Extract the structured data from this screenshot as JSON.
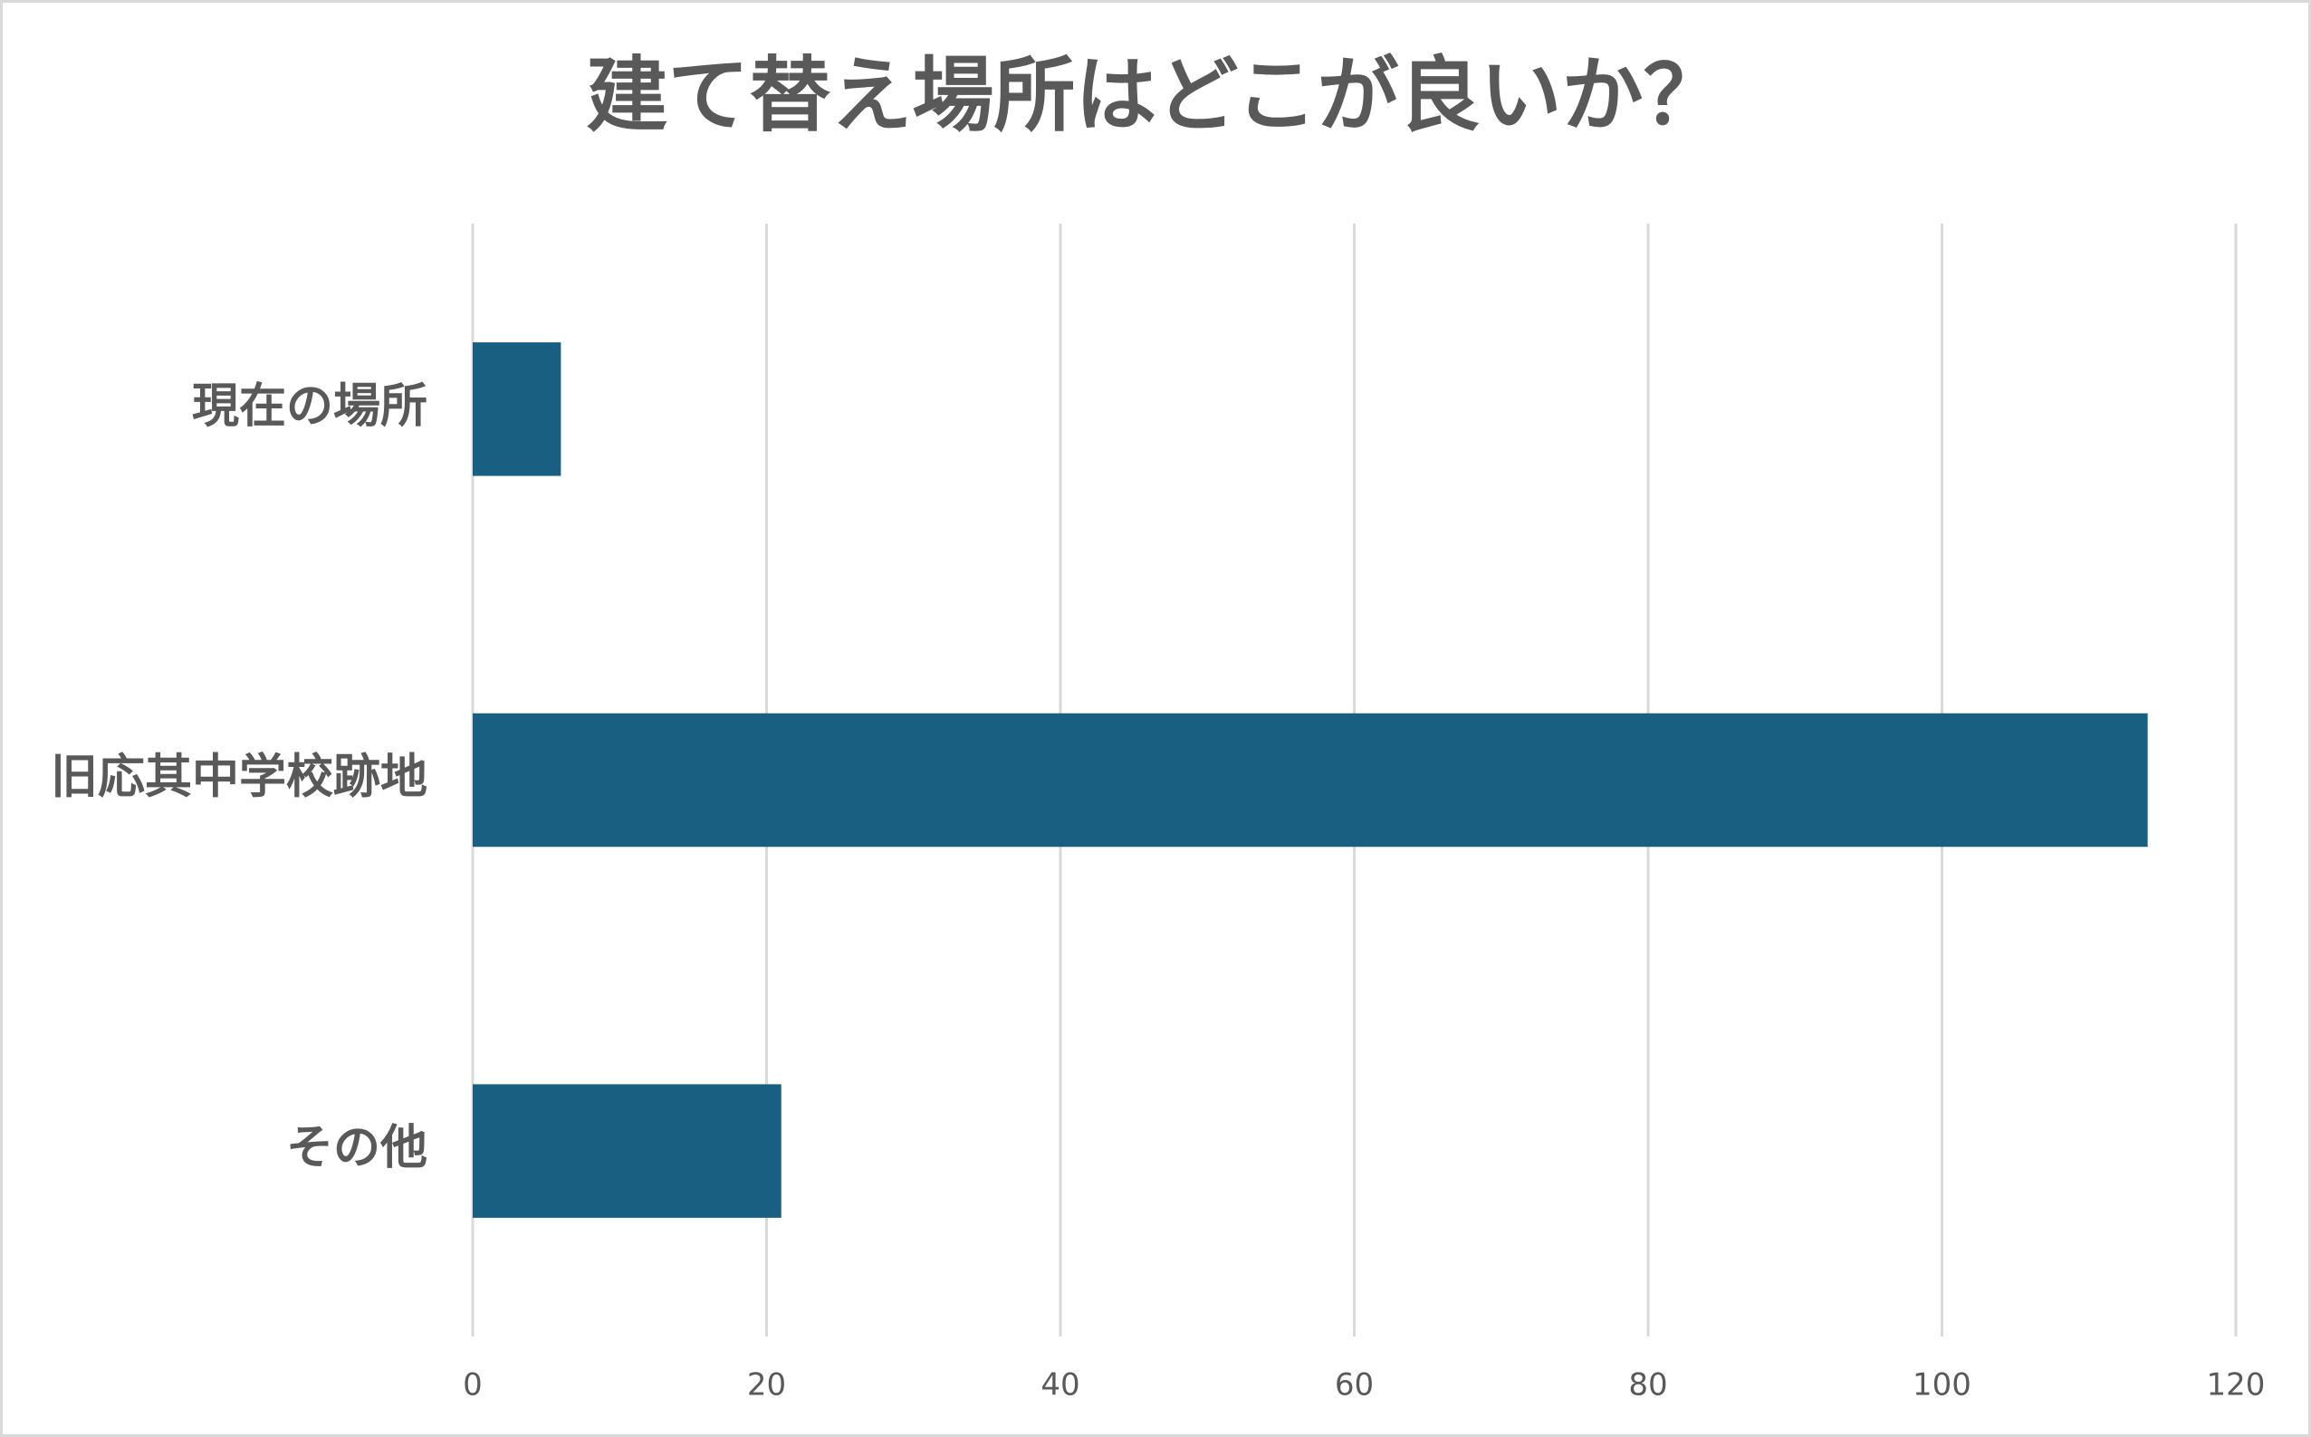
{
  "chart_data": {
    "type": "bar",
    "orientation": "horizontal",
    "title": "建て替え場所はどこが良いか？",
    "categories": [
      "現在の場所",
      "旧応其中学校跡地",
      "その他"
    ],
    "values": [
      6,
      114,
      21
    ],
    "color": "#185f82",
    "xlim": [
      0,
      120
    ],
    "xticks": [
      0,
      20,
      40,
      60,
      80,
      100,
      120
    ],
    "grid": true
  }
}
